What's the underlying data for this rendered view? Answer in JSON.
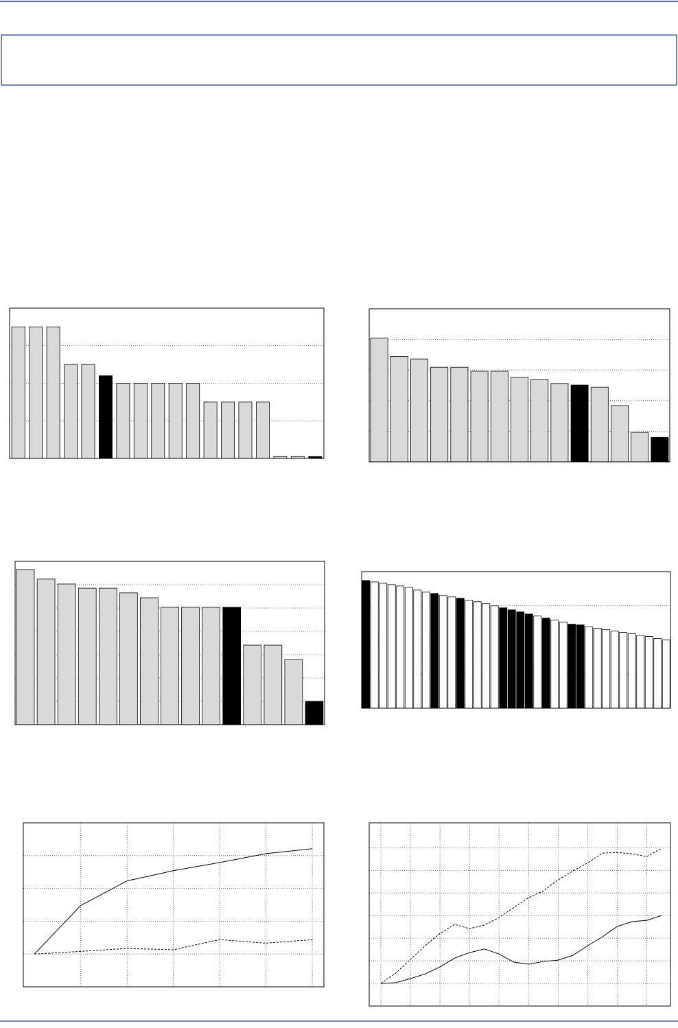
{
  "chart_data": [
    {
      "type": "bar",
      "categories": [
        null,
        null,
        null,
        null,
        null,
        null,
        null,
        null,
        null,
        null,
        null,
        null,
        null,
        null,
        null,
        null,
        null,
        null
      ],
      "values": [
        3.5,
        3.5,
        3.5,
        2.5,
        2.5,
        2.2,
        2,
        2,
        2,
        2,
        2,
        1.5,
        1.5,
        1.5,
        1.5,
        0.05,
        0.05,
        0.05
      ],
      "colors": [
        "#d9d9d9",
        "#d9d9d9",
        "#d9d9d9",
        "#d9d9d9",
        "#d9d9d9",
        "#000000",
        "#d9d9d9",
        "#d9d9d9",
        "#d9d9d9",
        "#d9d9d9",
        "#d9d9d9",
        "#d9d9d9",
        "#d9d9d9",
        "#d9d9d9",
        "#d9d9d9",
        "#d9d9d9",
        "#d9d9d9",
        "#000000"
      ],
      "ylim": [
        0,
        4
      ],
      "yticks": [
        1,
        2,
        3
      ],
      "grid": true
    },
    {
      "type": "bar",
      "categories": [
        null,
        null,
        null,
        null,
        null,
        null,
        null,
        null,
        null,
        null,
        null,
        null,
        null,
        null,
        null
      ],
      "values": [
        4.04,
        3.44,
        3.36,
        3.09,
        3.09,
        2.96,
        2.96,
        2.76,
        2.69,
        2.56,
        2.51,
        2.44,
        1.84,
        0.96,
        0.8
      ],
      "colors": [
        "#d9d9d9",
        "#d9d9d9",
        "#d9d9d9",
        "#d9d9d9",
        "#d9d9d9",
        "#d9d9d9",
        "#d9d9d9",
        "#d9d9d9",
        "#d9d9d9",
        "#d9d9d9",
        "#000000",
        "#d9d9d9",
        "#d9d9d9",
        "#d9d9d9",
        "#000000"
      ],
      "ylim": [
        0,
        5
      ],
      "yticks": [
        1,
        2,
        3,
        4
      ],
      "grid": true
    },
    {
      "type": "bar",
      "categories": [
        null,
        null,
        null,
        null,
        null,
        null,
        null,
        null,
        null,
        null,
        null,
        null,
        null,
        null,
        null
      ],
      "values": [
        6.65,
        6.24,
        6.03,
        5.85,
        5.85,
        5.65,
        5.44,
        5.03,
        5.03,
        5.03,
        5.03,
        3.41,
        3.41,
        2.79,
        1.0
      ],
      "colors": [
        "#d9d9d9",
        "#d9d9d9",
        "#d9d9d9",
        "#d9d9d9",
        "#d9d9d9",
        "#d9d9d9",
        "#d9d9d9",
        "#d9d9d9",
        "#d9d9d9",
        "#d9d9d9",
        "#000000",
        "#d9d9d9",
        "#d9d9d9",
        "#d9d9d9",
        "#000000"
      ],
      "ylim": [
        0,
        7
      ],
      "yticks": [
        1,
        2,
        3,
        4,
        5,
        6
      ],
      "grid": true
    },
    {
      "type": "bar",
      "categories": [
        null,
        null,
        null,
        null,
        null,
        null,
        null,
        null,
        null,
        null,
        null,
        null,
        null,
        null,
        null,
        null,
        null,
        null,
        null,
        null,
        null,
        null,
        null,
        null,
        null,
        null,
        null,
        null,
        null,
        null,
        null,
        null,
        null,
        null,
        null,
        null
      ],
      "values": [
        3.74,
        3.7,
        3.66,
        3.62,
        3.58,
        3.54,
        3.46,
        3.4,
        3.36,
        3.3,
        3.26,
        3.22,
        3.16,
        3.12,
        3.06,
        3.0,
        2.94,
        2.88,
        2.82,
        2.76,
        2.7,
        2.64,
        2.58,
        2.52,
        2.46,
        2.44,
        2.38,
        2.34,
        2.3,
        2.26,
        2.22,
        2.18,
        2.14,
        2.1,
        2.04,
        2.0
      ],
      "colors": [
        "#000000",
        "#ffffff",
        "#ffffff",
        "#ffffff",
        "#ffffff",
        "#ffffff",
        "#ffffff",
        "#ffffff",
        "#000000",
        "#ffffff",
        "#ffffff",
        "#000000",
        "#ffffff",
        "#ffffff",
        "#ffffff",
        "#ffffff",
        "#000000",
        "#000000",
        "#000000",
        "#000000",
        "#ffffff",
        "#000000",
        "#ffffff",
        "#ffffff",
        "#000000",
        "#000000",
        "#ffffff",
        "#ffffff",
        "#ffffff",
        "#ffffff",
        "#ffffff",
        "#ffffff",
        "#ffffff",
        "#ffffff",
        "#ffffff",
        "#ffffff"
      ],
      "ylim": [
        0,
        4
      ],
      "yticks": [
        1,
        2,
        3
      ],
      "grid": true
    },
    {
      "type": "line",
      "x": [
        0,
        1,
        2,
        3,
        4,
        5,
        6
      ],
      "xlim": [
        -0.24,
        6.25
      ],
      "xticks": [
        1,
        2,
        3,
        4,
        5,
        6
      ],
      "ylim": [
        0,
        5
      ],
      "yticks": [
        1,
        2,
        3,
        4
      ],
      "grid": true,
      "series": [
        {
          "color": "#000000",
          "dash": false,
          "values": [
            1.0,
            2.48,
            3.23,
            3.54,
            3.79,
            4.06,
            4.21
          ]
        },
        {
          "color": "#000000",
          "dash": true,
          "values": [
            1.0,
            1.08,
            1.17,
            1.13,
            1.44,
            1.33,
            1.44
          ]
        }
      ]
    },
    {
      "type": "line",
      "x": [
        0,
        1,
        2,
        3,
        4,
        5,
        6,
        7,
        8,
        9,
        10,
        11,
        12,
        13,
        14,
        15,
        16,
        17,
        18,
        19
      ],
      "xlim": [
        -0.79,
        19.6
      ],
      "xticks": [
        0,
        2,
        4,
        6,
        8,
        10,
        12,
        14,
        16,
        18
      ],
      "ylim": [
        0,
        8.1
      ],
      "yticks": [
        1,
        2,
        3,
        4,
        5,
        6,
        7
      ],
      "grid": true,
      "series": [
        {
          "color": "#000000",
          "dash": false,
          "values": [
            1.0,
            1.03,
            1.21,
            1.42,
            1.73,
            2.12,
            2.36,
            2.52,
            2.3,
            1.94,
            1.85,
            1.97,
            2.03,
            2.24,
            2.67,
            3.06,
            3.52,
            3.73,
            3.79,
            4.0
          ]
        },
        {
          "color": "#000000",
          "dash": true,
          "values": [
            1.0,
            1.45,
            2.06,
            2.67,
            3.21,
            3.61,
            3.42,
            3.58,
            3.91,
            4.36,
            4.79,
            5.09,
            5.58,
            5.97,
            6.33,
            6.76,
            6.79,
            6.73,
            6.61,
            6.97
          ]
        }
      ]
    }
  ]
}
